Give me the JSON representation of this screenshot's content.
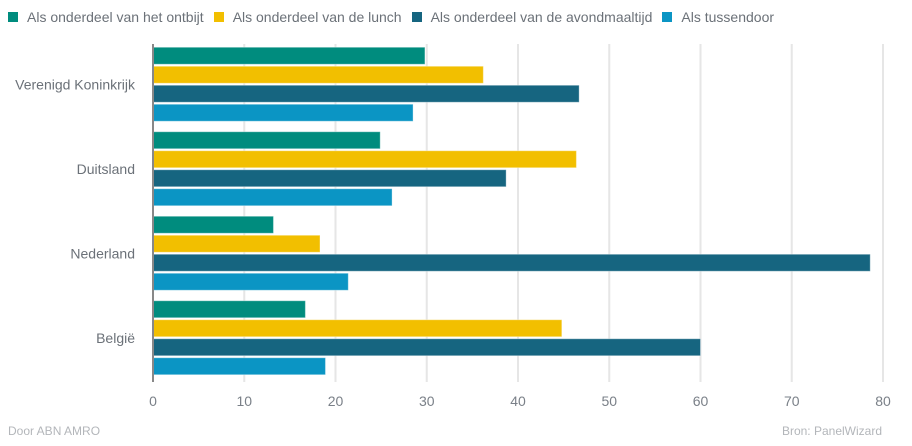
{
  "chart_data": {
    "type": "bar",
    "orientation": "horizontal",
    "title": "",
    "xlabel": "",
    "ylabel": "",
    "xlim": [
      0,
      80
    ],
    "grid": true,
    "legend_position": "top",
    "x_ticks": [
      0,
      10,
      20,
      30,
      40,
      50,
      60,
      70,
      80
    ],
    "categories": [
      "Verenigd Koninkrijk",
      "Duitsland",
      "Nederland",
      "België"
    ],
    "series": [
      {
        "name": "Als onderdeel van het ontbijt",
        "color": "#008c7e",
        "values": [
          29.8,
          24.9,
          13.2,
          16.7
        ]
      },
      {
        "name": "Als onderdeel van de lunch",
        "color": "#f2bf00",
        "values": [
          36.2,
          46.4,
          18.3,
          44.8
        ]
      },
      {
        "name": "Als onderdeel van de avondmaaltijd",
        "color": "#166580",
        "values": [
          46.7,
          38.7,
          78.6,
          60.0
        ]
      },
      {
        "name": "Als tussendoor",
        "color": "#0b95c4",
        "values": [
          28.5,
          26.2,
          21.4,
          18.9
        ]
      }
    ]
  },
  "footer": {
    "credit": "Door ABN AMRO",
    "source": "Bron: PanelWizard"
  }
}
